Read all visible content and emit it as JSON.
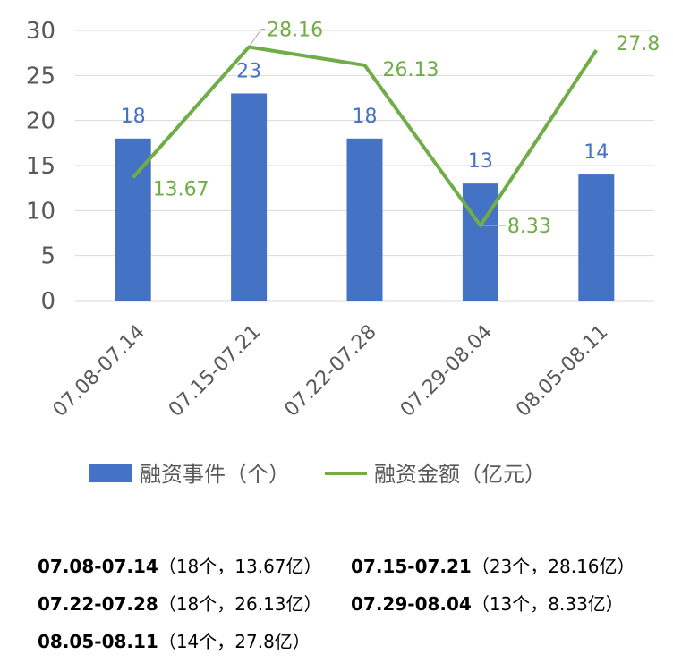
{
  "chart_data": {
    "type": "bar",
    "categories": [
      "07.08-07.14",
      "07.15-07.21",
      "07.22-07.28",
      "07.29-08.04",
      "08.05-08.11"
    ],
    "series": [
      {
        "name": "融资事件（个）",
        "type": "bar",
        "color": "#4472C4",
        "values": [
          18,
          23,
          18,
          13,
          14
        ]
      },
      {
        "name": "融资金额（亿元）",
        "type": "line",
        "color": "#70AD47",
        "values": [
          13.67,
          28.16,
          26.13,
          8.33,
          27.8
        ]
      }
    ],
    "ylim": [
      0,
      30
    ],
    "yticks": [
      0,
      5,
      10,
      15,
      20,
      25,
      30
    ],
    "grid": true,
    "legend": "bottom"
  },
  "summary": [
    {
      "week": "07.08-07.14",
      "detail": "（18个，13.67亿）"
    },
    {
      "week": "07.15-07.21",
      "detail": "（23个，28.16亿）"
    },
    {
      "week": "07.22-07.28",
      "detail": "（18个，26.13亿）"
    },
    {
      "week": "07.29-08.04",
      "detail": "（13个，8.33亿）"
    },
    {
      "week": "08.05-08.11",
      "detail": "（14个，27.8亿）"
    }
  ]
}
